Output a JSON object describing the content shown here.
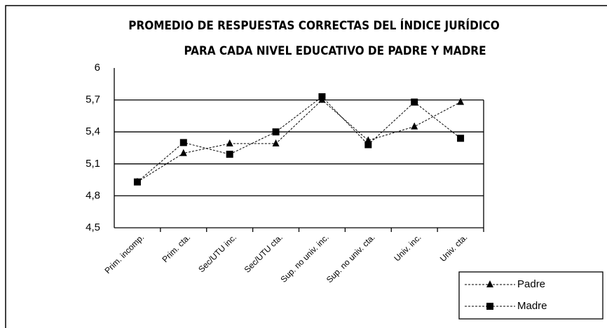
{
  "chart_data": {
    "type": "line",
    "title": [
      "PROMEDIO DE RESPUESTAS CORRECTAS DEL ÍNDICE JURÍDICO",
      "PARA CADA NIVEL EDUCATIVO DE PADRE Y MADRE"
    ],
    "categories": [
      "Prim. incomp.",
      "Prim. cta.",
      "Sec/UTU inc.",
      "Sec/UTU cta.",
      "Sup. no univ. inc.",
      "Sup. no univ. cta.",
      "Univ. inc.",
      "Univ. cta."
    ],
    "series": [
      {
        "name": "Padre",
        "color": "#000000",
        "marker": "triangle",
        "values": [
          4.93,
          5.2,
          5.29,
          5.29,
          5.7,
          5.32,
          5.45,
          5.68
        ]
      },
      {
        "name": "Madre",
        "color": "#000000",
        "marker": "square",
        "values": [
          4.93,
          5.3,
          5.19,
          5.4,
          5.73,
          5.28,
          5.68,
          5.34
        ]
      }
    ],
    "ylim": [
      4.5,
      6
    ],
    "yticks": [
      {
        "value": 4.5,
        "label": "4,5"
      },
      {
        "value": 4.8,
        "label": "4,8"
      },
      {
        "value": 5.1,
        "label": "5,1"
      },
      {
        "value": 5.4,
        "label": "5,4"
      },
      {
        "value": 5.7,
        "label": "5,7"
      },
      6
    ],
    "grid": true,
    "legend": "lower right"
  }
}
